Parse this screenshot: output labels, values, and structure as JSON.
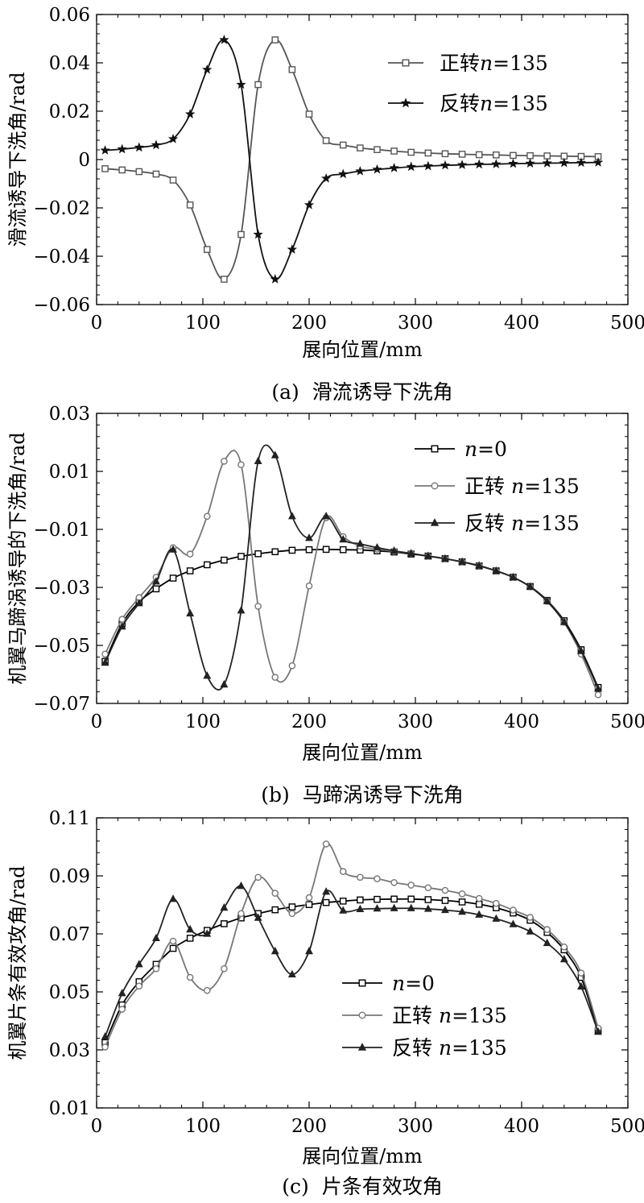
{
  "chart_data": [
    {
      "type": "line",
      "panel_caption": "(a)  滑流诱导下洗角",
      "xlabel": "展向位置/mm",
      "ylabel": "滑流诱导下洗角/rad",
      "xlim": [
        0,
        500
      ],
      "ylim": [
        -0.06,
        0.06
      ],
      "xticks": [
        "0",
        "100",
        "200",
        "300",
        "400",
        "500"
      ],
      "yticks": [
        "−0.06",
        "−0.04",
        "−0.02",
        "0",
        "0.02",
        "0.04",
        "0.06"
      ],
      "legend_position": "top-right",
      "series": [
        {
          "name": "正转n=135",
          "legend_prefix": "正转",
          "legend_n": "n",
          "legend_suffix": "=135",
          "color": "#555555",
          "marker": "square",
          "x": [
            8,
            24,
            40,
            56,
            72,
            88,
            104,
            120,
            136,
            152,
            168,
            184,
            200,
            216,
            232,
            248,
            264,
            280,
            296,
            312,
            328,
            344,
            360,
            376,
            392,
            408,
            424,
            440,
            456,
            472
          ],
          "y": [
            -0.0038,
            -0.0043,
            -0.005,
            -0.006,
            -0.0085,
            -0.0188,
            -0.0372,
            -0.0495,
            -0.031,
            0.031,
            0.0495,
            0.0372,
            0.0188,
            0.0078,
            0.006,
            0.0048,
            0.0041,
            0.0035,
            0.003,
            0.0027,
            0.0024,
            0.0022,
            0.002,
            0.0019,
            0.0017,
            0.0016,
            0.0015,
            0.0014,
            0.0013,
            0.0012
          ]
        },
        {
          "name": "反转n=135",
          "legend_prefix": "反转",
          "legend_n": "n",
          "legend_suffix": "=135",
          "color": "#111111",
          "marker": "star",
          "x": [
            8,
            24,
            40,
            56,
            72,
            88,
            104,
            120,
            136,
            152,
            168,
            184,
            200,
            216,
            232,
            248,
            264,
            280,
            296,
            312,
            328,
            344,
            360,
            376,
            392,
            408,
            424,
            440,
            456,
            472
          ],
          "y": [
            0.0038,
            0.0043,
            0.005,
            0.006,
            0.0085,
            0.0188,
            0.0372,
            0.0495,
            0.031,
            -0.031,
            -0.0495,
            -0.0372,
            -0.0188,
            -0.0078,
            -0.006,
            -0.0048,
            -0.0041,
            -0.0035,
            -0.003,
            -0.0027,
            -0.0024,
            -0.0022,
            -0.002,
            -0.0019,
            -0.0017,
            -0.0016,
            -0.0015,
            -0.0014,
            -0.0013,
            -0.0012
          ]
        }
      ]
    },
    {
      "type": "line",
      "panel_caption": "(b)  马蹄涡诱导下洗角",
      "xlabel": "展向位置/mm",
      "ylabel": "机翼马蹄涡诱导的下洗角/rad",
      "xlim": [
        0,
        500
      ],
      "ylim": [
        -0.07,
        0.03
      ],
      "xticks": [
        "0",
        "100",
        "200",
        "300",
        "400",
        "500"
      ],
      "yticks": [
        "−0.07",
        "−0.05",
        "−0.03",
        "−0.01",
        "0.01",
        "0.03"
      ],
      "legend_position": "top-right",
      "series": [
        {
          "name": "n=0",
          "legend_prefix": "",
          "legend_n": "n",
          "legend_suffix": "=0",
          "color": "#000000",
          "marker": "square",
          "x": [
            8,
            24,
            40,
            56,
            72,
            88,
            104,
            120,
            136,
            152,
            168,
            184,
            200,
            216,
            232,
            248,
            264,
            280,
            296,
            312,
            328,
            344,
            360,
            376,
            392,
            408,
            424,
            440,
            456,
            472
          ],
          "y": [
            -0.0555,
            -0.0425,
            -0.035,
            -0.0305,
            -0.0268,
            -0.0243,
            -0.0222,
            -0.0206,
            -0.0193,
            -0.0184,
            -0.0177,
            -0.0172,
            -0.017,
            -0.0169,
            -0.017,
            -0.0171,
            -0.0174,
            -0.0178,
            -0.0185,
            -0.0192,
            -0.0201,
            -0.0212,
            -0.0226,
            -0.0243,
            -0.0265,
            -0.0297,
            -0.0345,
            -0.0415,
            -0.0515,
            -0.0645
          ]
        },
        {
          "name": "正转 n=135",
          "legend_prefix": "正转 ",
          "legend_n": "n",
          "legend_suffix": "=135",
          "color": "#777777",
          "marker": "circle",
          "x": [
            8,
            24,
            40,
            56,
            72,
            88,
            104,
            120,
            136,
            152,
            168,
            184,
            200,
            216,
            232,
            248,
            264,
            280,
            296,
            312,
            328,
            344,
            360,
            376,
            392,
            408,
            424,
            440,
            456,
            472
          ],
          "y": [
            -0.053,
            -0.041,
            -0.0335,
            -0.0265,
            -0.0163,
            -0.0185,
            -0.0055,
            0.0135,
            0.0123,
            -0.0365,
            -0.061,
            -0.057,
            -0.0295,
            -0.006,
            -0.0125,
            -0.0158,
            -0.0168,
            -0.0176,
            -0.0183,
            -0.0192,
            -0.0201,
            -0.0212,
            -0.0225,
            -0.0243,
            -0.0265,
            -0.0298,
            -0.0348,
            -0.042,
            -0.053,
            -0.067
          ]
        },
        {
          "name": "反转 n=135",
          "legend_prefix": "反转 ",
          "legend_n": "n",
          "legend_suffix": "=135",
          "color": "#222222",
          "marker": "triangle",
          "x": [
            8,
            24,
            40,
            56,
            72,
            88,
            104,
            120,
            136,
            152,
            168,
            184,
            200,
            216,
            232,
            248,
            264,
            280,
            296,
            312,
            328,
            344,
            360,
            376,
            392,
            408,
            424,
            440,
            456,
            472
          ],
          "y": [
            -0.056,
            -0.0435,
            -0.0355,
            -0.028,
            -0.017,
            -0.039,
            -0.0605,
            -0.0635,
            -0.038,
            0.0135,
            0.0155,
            -0.0055,
            -0.013,
            -0.0055,
            -0.0135,
            -0.015,
            -0.0163,
            -0.0174,
            -0.0183,
            -0.0192,
            -0.0201,
            -0.0212,
            -0.0225,
            -0.0243,
            -0.0265,
            -0.0298,
            -0.0348,
            -0.042,
            -0.052,
            -0.065
          ]
        }
      ]
    },
    {
      "type": "line",
      "panel_caption": "(c)  片条有效攻角",
      "xlabel": "展向位置/mm",
      "ylabel": "机翼片条有效攻角/rad",
      "xlim": [
        0,
        500
      ],
      "ylim": [
        0.01,
        0.11
      ],
      "xticks": [
        "0",
        "100",
        "200",
        "300",
        "400",
        "500"
      ],
      "yticks": [
        "0.01",
        "0.03",
        "0.05",
        "0.07",
        "0.09",
        "0.11"
      ],
      "legend_position": "bottom-right",
      "series": [
        {
          "name": "n=0",
          "legend_prefix": "",
          "legend_n": "n",
          "legend_suffix": "=0",
          "color": "#000000",
          "marker": "square",
          "x": [
            8,
            24,
            40,
            56,
            72,
            88,
            104,
            120,
            136,
            152,
            168,
            184,
            200,
            216,
            232,
            248,
            264,
            280,
            296,
            312,
            328,
            344,
            360,
            376,
            392,
            408,
            424,
            440,
            456,
            472
          ],
          "y": [
            0.0325,
            0.0455,
            0.0535,
            0.0595,
            0.065,
            0.0685,
            0.0712,
            0.0735,
            0.0755,
            0.077,
            0.0783,
            0.0793,
            0.0801,
            0.0808,
            0.0813,
            0.0817,
            0.0819,
            0.082,
            0.082,
            0.0818,
            0.0815,
            0.081,
            0.0802,
            0.079,
            0.0772,
            0.0747,
            0.0705,
            0.0645,
            0.055,
            0.0365
          ]
        },
        {
          "name": "正转 n=135",
          "legend_prefix": "正转 ",
          "legend_n": "n",
          "legend_suffix": "=135",
          "color": "#777777",
          "marker": "circle",
          "x": [
            8,
            24,
            40,
            56,
            72,
            88,
            104,
            120,
            136,
            152,
            168,
            184,
            200,
            216,
            232,
            248,
            264,
            280,
            296,
            312,
            328,
            344,
            360,
            376,
            392,
            408,
            424,
            440,
            456,
            472
          ],
          "y": [
            0.031,
            0.044,
            0.052,
            0.058,
            0.0675,
            0.055,
            0.0505,
            0.058,
            0.077,
            0.0895,
            0.084,
            0.077,
            0.0825,
            0.101,
            0.0915,
            0.0895,
            0.089,
            0.0877,
            0.0868,
            0.0859,
            0.085,
            0.0838,
            0.0822,
            0.0805,
            0.0782,
            0.0757,
            0.0715,
            0.0655,
            0.0565,
            0.0375
          ]
        },
        {
          "name": "反转 n=135",
          "legend_prefix": "反转 ",
          "legend_n": "n",
          "legend_suffix": "=135",
          "color": "#222222",
          "marker": "triangle",
          "x": [
            8,
            24,
            40,
            56,
            72,
            88,
            104,
            120,
            136,
            152,
            168,
            184,
            200,
            216,
            232,
            248,
            264,
            280,
            296,
            312,
            328,
            344,
            360,
            376,
            392,
            408,
            424,
            440,
            456,
            472
          ],
          "y": [
            0.0345,
            0.0495,
            0.0595,
            0.0685,
            0.082,
            0.0715,
            0.07,
            0.079,
            0.0865,
            0.0755,
            0.064,
            0.056,
            0.064,
            0.0845,
            0.078,
            0.0785,
            0.0787,
            0.0788,
            0.0788,
            0.0786,
            0.0782,
            0.0776,
            0.0766,
            0.0752,
            0.0733,
            0.0708,
            0.0668,
            0.0612,
            0.0518,
            0.0362
          ]
        }
      ]
    }
  ]
}
